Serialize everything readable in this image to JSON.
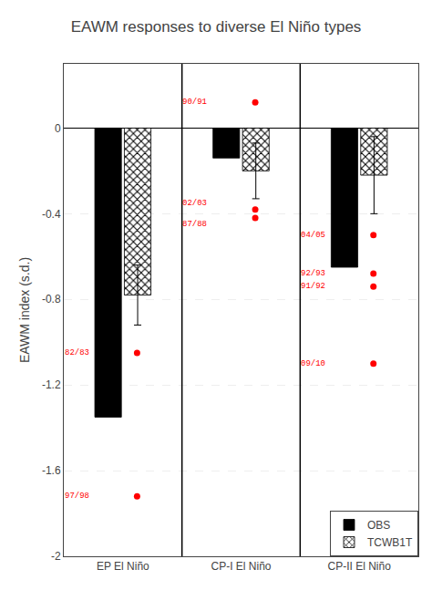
{
  "chart_data": {
    "type": "bar",
    "title": "EAWM responses to diverse El Niño types",
    "ylabel": "EAWM index (s.d.)",
    "categories": [
      "EP El Niño",
      "CP-I El Niño",
      "CP-II El Niño"
    ],
    "series": [
      {
        "name": "OBS",
        "color": "#000000",
        "values": [
          -1.35,
          -0.14,
          -0.65
        ]
      },
      {
        "name": "TCWB1T",
        "color": "#ffffff",
        "values": [
          -0.78,
          -0.2,
          -0.22
        ],
        "errors": [
          0.14,
          0.13,
          0.18
        ]
      }
    ],
    "annotations": [
      {
        "category": "EP El Niño",
        "y": -1.05,
        "text": "82/83",
        "color": "red"
      },
      {
        "category": "EP El Niño",
        "y": -1.72,
        "text": "97/98",
        "color": "red"
      },
      {
        "category": "CP-I El Niño",
        "y": 0.12,
        "text": "90/91",
        "color": "red"
      },
      {
        "category": "CP-I El Niño",
        "y": -0.38,
        "text": "02/03",
        "color": "red"
      },
      {
        "category": "CP-I El Niño",
        "y": -0.42,
        "text": "87/88",
        "color": "red"
      },
      {
        "category": "CP-II El Niño",
        "y": -0.5,
        "text": "04/05",
        "color": "red"
      },
      {
        "category": "CP-II El Niño",
        "y": -0.68,
        "text": "92/93",
        "color": "red"
      },
      {
        "category": "CP-II El Niño",
        "y": -0.74,
        "text": "91/92",
        "color": "red"
      },
      {
        "category": "CP-II El Niño",
        "y": -1.1,
        "text": "09/10",
        "color": "red"
      }
    ],
    "ylim": [
      -2.0,
      0.3
    ],
    "yticks": [
      -2.0,
      -1.6,
      -1.2,
      -0.8,
      -0.4,
      0.0
    ],
    "grid": true,
    "legend": "lower right"
  }
}
